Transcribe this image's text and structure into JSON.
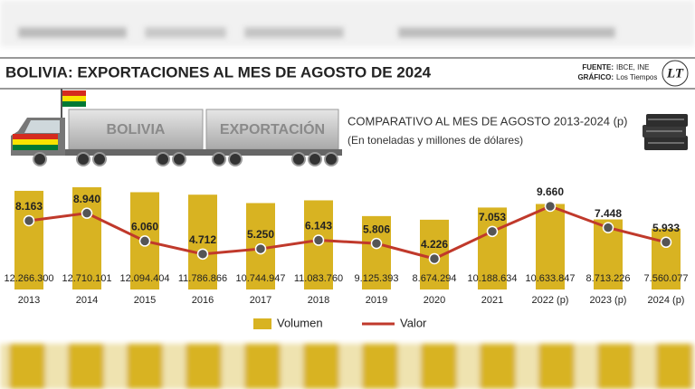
{
  "header": {
    "title": "BOLIVIA: EXPORTACIONES AL MES DE AGOSTO DE 2024",
    "source_label": "FUENTE:",
    "source": "IBCE, INE",
    "credit_label": "GRÁFICO:",
    "credit": "Los Tiempos",
    "logo": "LT"
  },
  "truck": {
    "left": "BOLIVIA",
    "right": "EXPORTACIÓN"
  },
  "chart_data": {
    "type": "bar",
    "title": "COMPARATIVO AL MES DE AGOSTO 2013-2024 (p)",
    "subtitle": "(En toneladas y millones de dólares)",
    "categories": [
      "2013",
      "2014",
      "2015",
      "2016",
      "2017",
      "2018",
      "2019",
      "2020",
      "2021",
      "2022 (p)",
      "2023 (p)",
      "2024 (p)"
    ],
    "series": [
      {
        "name": "Volumen",
        "color": "#d8b322",
        "values": [
          12266300,
          12710101,
          12094404,
          11786866,
          10744947,
          11083760,
          9125393,
          8674294,
          10188634,
          10633847,
          8713226,
          7560077
        ],
        "value_labels": [
          "12.266.300",
          "12.710.101",
          "12.094.404",
          "11.786.866",
          "10.744.947",
          "11.083.760",
          "9.125.393",
          "8.674.294",
          "10.188.634",
          "10.633.847",
          "8.713.226",
          "7.560.077"
        ]
      },
      {
        "name": "Valor",
        "color": "#c0392b",
        "type": "line",
        "values": [
          8163,
          8940,
          6060,
          4712,
          5250,
          6143,
          5806,
          4226,
          7053,
          9660,
          7448,
          5933
        ],
        "value_labels": [
          "8.163",
          "8.940",
          "6.060",
          "4.712",
          "5.250",
          "6.143",
          "5.806",
          "4.226",
          "7.053",
          "9.660",
          "7.448",
          "5.933"
        ]
      }
    ]
  }
}
